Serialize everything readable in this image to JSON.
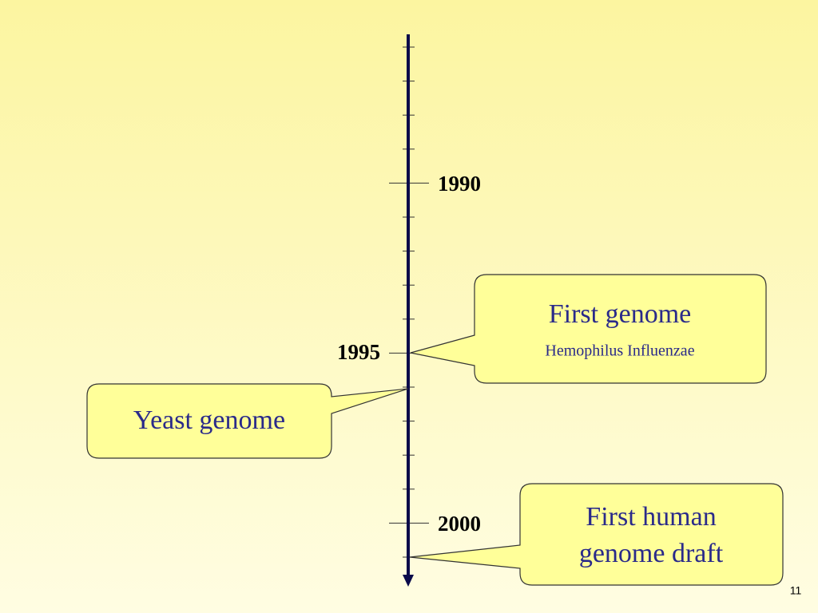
{
  "timeline": {
    "labels": [
      "1990",
      "1995",
      "2000"
    ]
  },
  "callouts": [
    {
      "lines": [
        "First genome"
      ],
      "subtitle": "Hemophilus Influenzae"
    },
    {
      "lines": [
        "Yeast genome"
      ]
    },
    {
      "lines": [
        "First human",
        "genome draft"
      ]
    }
  ],
  "page_number": "11"
}
